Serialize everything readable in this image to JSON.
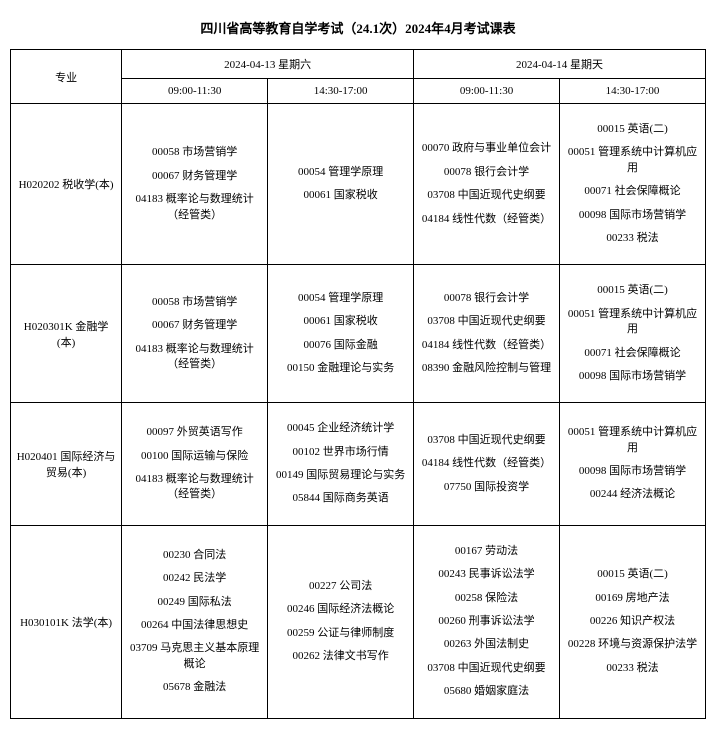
{
  "title": "四川省高等教育自学考试（24.1次）2024年4月考试课表",
  "header": {
    "major": "专业",
    "day1": "2024-04-13 星期六",
    "day2": "2024-04-14 星期天",
    "slot_am": "09:00-11:30",
    "slot_pm": "14:30-17:00"
  },
  "rows": [
    {
      "major": "H020202 税收学(本)",
      "d1am": [
        "00058 市场营销学",
        "00067 财务管理学",
        "04183 概率论与数理统计（经管类）"
      ],
      "d1pm": [
        "00054 管理学原理",
        "00061 国家税收"
      ],
      "d2am": [
        "00070 政府与事业单位会计",
        "00078 银行会计学",
        "03708 中国近现代史纲要",
        "04184 线性代数（经管类）"
      ],
      "d2pm": [
        "00015 英语(二)",
        "00051 管理系统中计算机应用",
        "00071 社会保障概论",
        "00098 国际市场营销学",
        "00233 税法"
      ]
    },
    {
      "major": "H020301K 金融学(本)",
      "d1am": [
        "00058 市场营销学",
        "00067 财务管理学",
        "04183 概率论与数理统计（经管类）"
      ],
      "d1pm": [
        "00054 管理学原理",
        "00061 国家税收",
        "00076 国际金融",
        "00150 金融理论与实务"
      ],
      "d2am": [
        "00078 银行会计学",
        "03708 中国近现代史纲要",
        "04184 线性代数（经管类）",
        "08390 金融风险控制与管理"
      ],
      "d2pm": [
        "00015 英语(二)",
        "00051 管理系统中计算机应用",
        "00071 社会保障概论",
        "00098 国际市场营销学"
      ]
    },
    {
      "major": "H020401 国际经济与贸易(本)",
      "d1am": [
        "00097 外贸英语写作",
        "00100 国际运输与保险",
        "04183 概率论与数理统计（经管类）"
      ],
      "d1pm": [
        "00045 企业经济统计学",
        "00102 世界市场行情",
        "00149 国际贸易理论与实务",
        "05844 国际商务英语"
      ],
      "d2am": [
        "03708 中国近现代史纲要",
        "04184 线性代数（经管类）",
        "07750 国际投资学"
      ],
      "d2pm": [
        "00051 管理系统中计算机应用",
        "00098 国际市场营销学",
        "00244 经济法概论"
      ]
    },
    {
      "major": "H030101K 法学(本)",
      "d1am": [
        "00230 合同法",
        "00242 民法学",
        "00249 国际私法",
        "00264 中国法律思想史",
        "03709 马克思主义基本原理概论",
        "05678 金融法"
      ],
      "d1pm": [
        "00227 公司法",
        "00246 国际经济法概论",
        "00259 公证与律师制度",
        "00262 法律文书写作"
      ],
      "d2am": [
        "00167 劳动法",
        "00243 民事诉讼法学",
        "00258 保险法",
        "00260 刑事诉讼法学",
        "00263 外国法制史",
        "03708 中国近现代史纲要",
        "05680 婚姻家庭法"
      ],
      "d2pm": [
        "00015 英语(二)",
        "00169 房地产法",
        "00226 知识产权法",
        "00228 环境与资源保护法学",
        "00233 税法"
      ]
    }
  ]
}
